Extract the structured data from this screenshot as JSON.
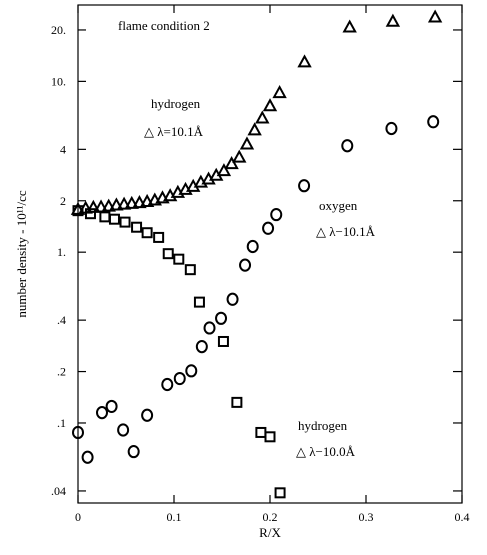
{
  "chart_data": {
    "type": "scatter",
    "title": "flame condition 2",
    "xlabel": "R/X",
    "ylabel": "number density - 10¹¹/cc",
    "x_scale": "linear",
    "y_scale": "log",
    "xlim": [
      0,
      0.4
    ],
    "ylim": [
      0.034,
      28
    ],
    "grid": false,
    "x_ticks": [
      {
        "value": 0,
        "label": "0"
      },
      {
        "value": 0.1,
        "label": "0.1"
      },
      {
        "value": 0.2,
        "label": "0.2"
      },
      {
        "value": 0.3,
        "label": "0.3"
      },
      {
        "value": 0.4,
        "label": "0.4"
      }
    ],
    "y_ticks": [
      {
        "value": 0.04,
        "label": ".04"
      },
      {
        "value": 0.1,
        "label": ".1"
      },
      {
        "value": 0.2,
        "label": ".2"
      },
      {
        "value": 0.4,
        "label": ".4"
      },
      {
        "value": 1,
        "label": "1."
      },
      {
        "value": 2,
        "label": "2"
      },
      {
        "value": 4,
        "label": "4"
      },
      {
        "value": 10,
        "label": "10."
      },
      {
        "value": 20,
        "label": "20."
      }
    ],
    "series": [
      {
        "name": "hydrogen △ λ=10.1Å",
        "marker": "triangle",
        "points": [
          [
            0.0,
            1.78
          ],
          [
            0.008,
            1.81
          ],
          [
            0.016,
            1.83
          ],
          [
            0.024,
            1.84
          ],
          [
            0.032,
            1.86
          ],
          [
            0.04,
            1.89
          ],
          [
            0.048,
            1.91
          ],
          [
            0.056,
            1.93
          ],
          [
            0.064,
            1.95
          ],
          [
            0.072,
            1.98
          ],
          [
            0.08,
            2.02
          ],
          [
            0.088,
            2.08
          ],
          [
            0.096,
            2.14
          ],
          [
            0.104,
            2.24
          ],
          [
            0.112,
            2.33
          ],
          [
            0.12,
            2.43
          ],
          [
            0.128,
            2.57
          ],
          [
            0.136,
            2.68
          ],
          [
            0.144,
            2.82
          ],
          [
            0.152,
            3.0
          ],
          [
            0.16,
            3.3
          ],
          [
            0.168,
            3.6
          ],
          [
            0.176,
            4.3
          ],
          [
            0.184,
            5.2
          ],
          [
            0.192,
            6.1
          ],
          [
            0.2,
            7.2
          ],
          [
            0.21,
            8.6
          ],
          [
            0.236,
            13.0
          ],
          [
            0.283,
            20.8
          ],
          [
            0.328,
            22.5
          ],
          [
            0.372,
            23.8
          ]
        ]
      },
      {
        "name": "oxygen △ λ=10.1Å",
        "marker": "circle",
        "points": [
          [
            0.0,
            0.088
          ],
          [
            0.01,
            0.063
          ],
          [
            0.025,
            0.115
          ],
          [
            0.035,
            0.125
          ],
          [
            0.047,
            0.091
          ],
          [
            0.058,
            0.068
          ],
          [
            0.072,
            0.111
          ],
          [
            0.093,
            0.168
          ],
          [
            0.106,
            0.182
          ],
          [
            0.118,
            0.202
          ],
          [
            0.129,
            0.28
          ],
          [
            0.137,
            0.36
          ],
          [
            0.149,
            0.41
          ],
          [
            0.161,
            0.53
          ],
          [
            0.174,
            0.84
          ],
          [
            0.182,
            1.08
          ],
          [
            0.198,
            1.38
          ],
          [
            0.2065,
            1.66
          ],
          [
            0.2355,
            2.45
          ],
          [
            0.2805,
            4.2
          ],
          [
            0.3265,
            5.3
          ],
          [
            0.37,
            5.8
          ]
        ]
      },
      {
        "name": "hydrogen △ λ=10.0Å",
        "marker": "square",
        "points": [
          [
            0.0,
            1.75
          ],
          [
            0.013,
            1.68
          ],
          [
            0.028,
            1.61
          ],
          [
            0.038,
            1.56
          ],
          [
            0.049,
            1.5
          ],
          [
            0.061,
            1.4
          ],
          [
            0.072,
            1.3
          ],
          [
            0.084,
            1.22
          ],
          [
            0.094,
            0.98
          ],
          [
            0.105,
            0.91
          ],
          [
            0.117,
            0.79
          ],
          [
            0.1265,
            0.51
          ],
          [
            0.1515,
            0.3
          ],
          [
            0.1655,
            0.132
          ],
          [
            0.1905,
            0.088
          ],
          [
            0.2,
            0.083
          ],
          [
            0.2105,
            0.039
          ]
        ]
      }
    ],
    "annotations": [
      {
        "id": "title",
        "text": "flame condition 2"
      },
      {
        "id": "hyd1-name",
        "text": "hydrogen"
      },
      {
        "id": "hyd1-lambda",
        "text": "△ λ=10.1Å"
      },
      {
        "id": "oxy-name",
        "text": "oxygen"
      },
      {
        "id": "oxy-lambda",
        "text": "△ λ−10.1Å"
      },
      {
        "id": "hyd2-name",
        "text": "hydrogen"
      },
      {
        "id": "hyd2-lambda",
        "text": "△ λ−10.0Å"
      }
    ]
  }
}
